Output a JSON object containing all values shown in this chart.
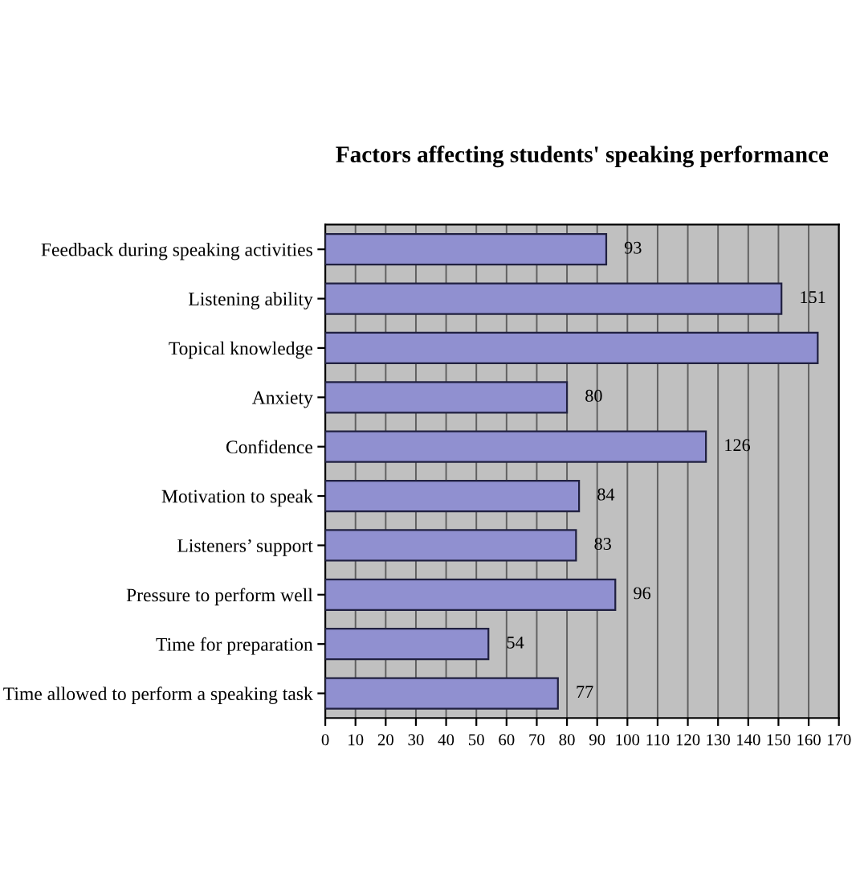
{
  "chart_data": {
    "type": "bar",
    "orientation": "horizontal",
    "title": "Factors affecting students' speaking performance",
    "categories": [
      "Feedback during speaking activities",
      "Listening ability",
      "Topical knowledge",
      "Anxiety",
      "Confidence",
      "Motivation to speak",
      "Listeners’ support",
      "Pressure to perform well",
      "Time for preparation",
      "Time allowed to perform a speaking task"
    ],
    "values": [
      93,
      151,
      163,
      80,
      126,
      84,
      83,
      96,
      54,
      77
    ],
    "value_labels": [
      "93",
      "151",
      null,
      "80",
      "126",
      "84",
      "83",
      "96",
      "54",
      "77"
    ],
    "color": "#9090d0",
    "xlim": [
      0,
      170
    ],
    "xticks": [
      0,
      10,
      20,
      30,
      40,
      50,
      60,
      70,
      80,
      90,
      100,
      110,
      120,
      130,
      140,
      150,
      160,
      170
    ],
    "grid": "x",
    "legend": false
  }
}
